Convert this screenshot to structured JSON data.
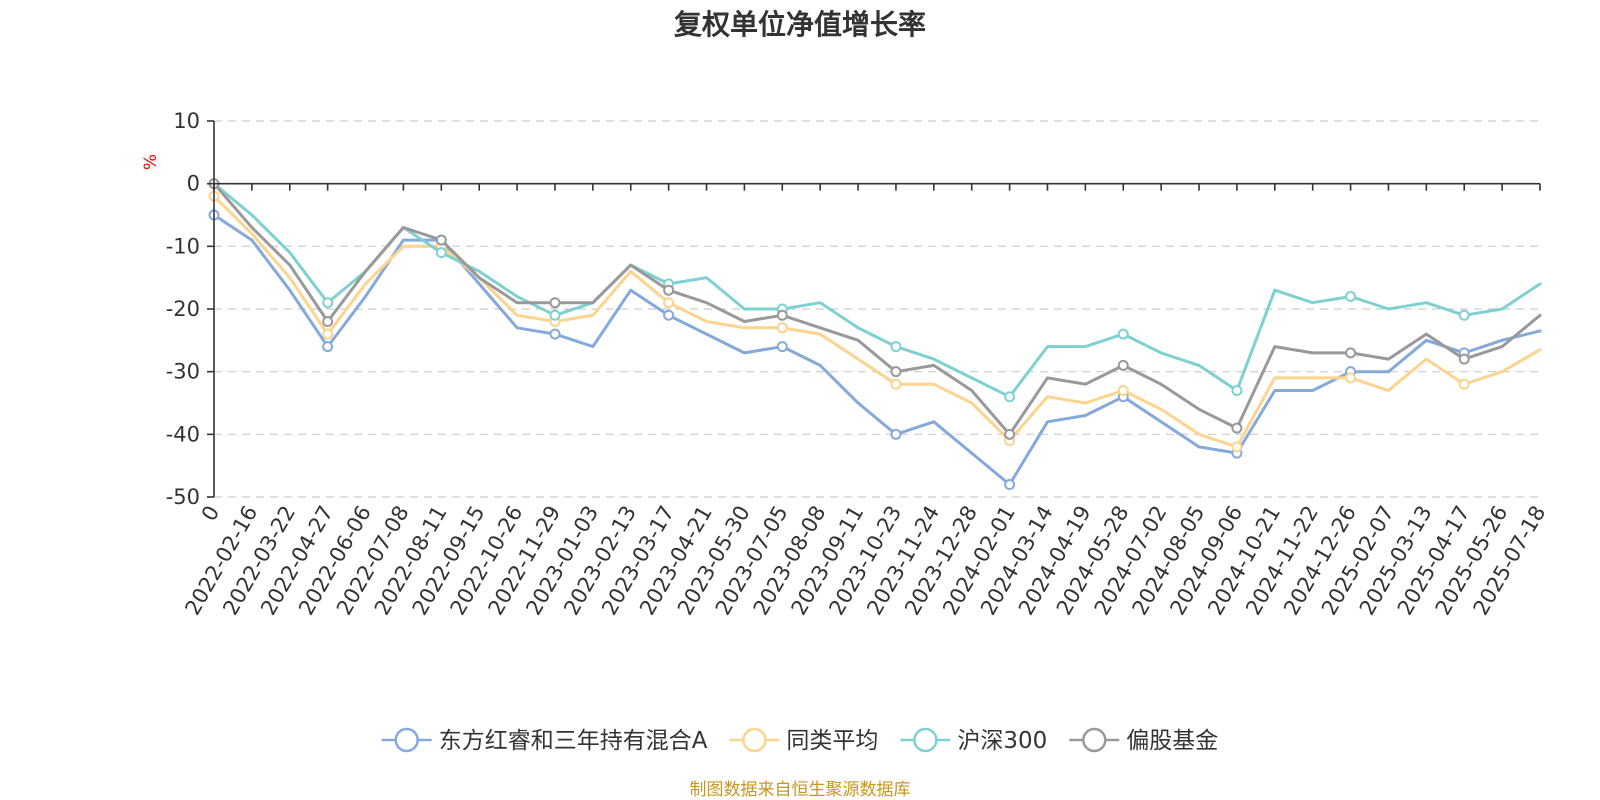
{
  "chart_data": {
    "type": "line",
    "title": "复权单位净值增长率",
    "ylabel": "%",
    "ylim": [
      -50,
      10
    ],
    "yticks": [
      10,
      0,
      -10,
      -20,
      -30,
      -40,
      -50
    ],
    "grid": true,
    "legend_position": "bottom",
    "x": [
      "0",
      "2022-02-16",
      "2022-03-22",
      "2022-04-27",
      "2022-06-06",
      "2022-07-08",
      "2022-08-11",
      "2022-09-15",
      "2022-10-26",
      "2022-11-29",
      "2023-01-03",
      "2023-02-13",
      "2023-03-17",
      "2023-04-21",
      "2023-05-30",
      "2023-07-05",
      "2023-08-08",
      "2023-09-11",
      "2023-10-23",
      "2023-11-24",
      "2023-12-28",
      "2024-02-01",
      "2024-03-14",
      "2024-04-19",
      "2024-05-28",
      "2024-07-02",
      "2024-08-05",
      "2024-09-06",
      "2024-10-21",
      "2024-11-22",
      "2024-12-26",
      "2025-02-07",
      "2025-03-13",
      "2025-04-17",
      "2025-05-26",
      "2025-07-18"
    ],
    "series": [
      {
        "name": "东方红睿和三年持有混合A",
        "color": "#85a9db",
        "values": [
          -5,
          -9,
          -17,
          -26,
          -18,
          -9,
          -9,
          -16,
          -23,
          -24,
          -26,
          -17,
          -21,
          -24,
          -27,
          -26,
          -29,
          -35,
          -40,
          -38,
          -43,
          -48,
          -38,
          -37,
          -34,
          -38,
          -42,
          -43,
          -33,
          -33,
          -30,
          -30,
          -25,
          -27,
          -25,
          -23.5
        ]
      },
      {
        "name": "同类平均",
        "color": "#fcd38f",
        "values": [
          -2,
          -8,
          -15,
          -24,
          -16,
          -10,
          -10,
          -15,
          -21,
          -22,
          -21,
          -14,
          -19,
          -22,
          -23,
          -23,
          -24,
          -28,
          -32,
          -32,
          -35,
          -41,
          -34,
          -35,
          -33,
          -36,
          -40,
          -42,
          -31,
          -31,
          -31,
          -33,
          -28,
          -32,
          -30,
          -26.5
        ]
      },
      {
        "name": "沪深300",
        "color": "#7fd1d1",
        "values": [
          0,
          -5,
          -11,
          -19,
          -14,
          -7,
          -11,
          -14,
          -18,
          -21,
          -19,
          -13,
          -16,
          -15,
          -20,
          -20,
          -19,
          -23,
          -26,
          -28,
          -31,
          -34,
          -26,
          -26,
          -24,
          -27,
          -29,
          -33,
          -17,
          -19,
          -18,
          -20,
          -19,
          -21,
          -20,
          -16
        ]
      },
      {
        "name": "偏股基金",
        "color": "#999999",
        "values": [
          0,
          -7,
          -13,
          -22,
          -14,
          -7,
          -9,
          -15,
          -19,
          -19,
          -19,
          -13,
          -17,
          -19,
          -22,
          -21,
          -23,
          -25,
          -30,
          -29,
          -33,
          -40,
          -31,
          -32,
          -29,
          -32,
          -36,
          -39,
          -26,
          -27,
          -27,
          -28,
          -24,
          -28,
          -26,
          -21
        ]
      }
    ]
  },
  "footer_text": "制图数据来自恒生聚源数据库"
}
